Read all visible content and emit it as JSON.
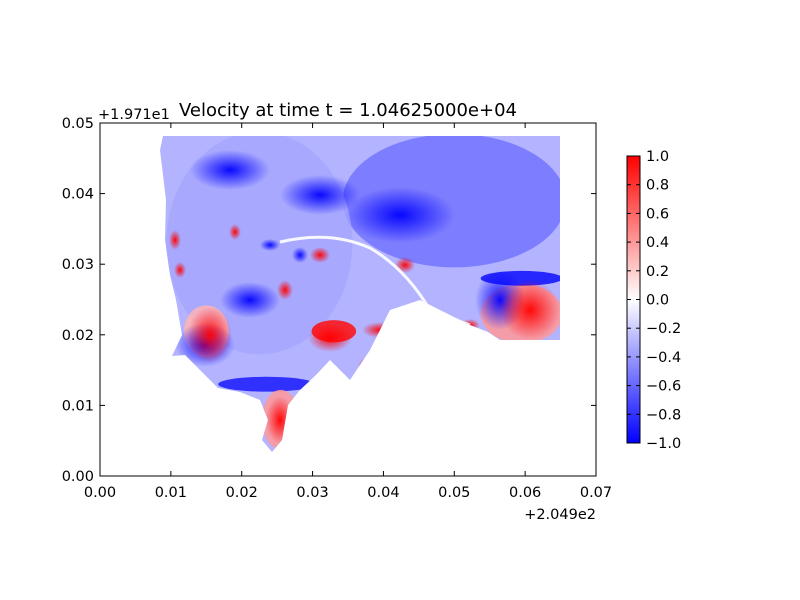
{
  "chart_data": {
    "type": "heatmap",
    "title": "Velocity at time t = 1.04625000e+04",
    "xlabel": "",
    "ylabel": "",
    "xlim": [
      0.0,
      0.07
    ],
    "ylim": [
      0.0,
      0.05
    ],
    "x_ticks": [
      "0.00",
      "0.01",
      "0.02",
      "0.03",
      "0.04",
      "0.05",
      "0.06",
      "0.07"
    ],
    "y_ticks": [
      "0.00",
      "0.01",
      "0.02",
      "0.03",
      "0.04",
      "0.05"
    ],
    "x_offset": "+2.049e2",
    "y_offset": "+1.971e1",
    "colorbar": {
      "colormap": "bwr",
      "range": [
        -1.0,
        1.0
      ],
      "ticks": [
        "1.0",
        "0.8",
        "0.6",
        "0.4",
        "0.2",
        "0.0",
        "−0.2",
        "−0.4",
        "−0.6",
        "−0.8",
        "−1.0"
      ],
      "colors": {
        "low": "#0000ff",
        "mid": "#ffffff",
        "high": "#ff0000"
      }
    },
    "field_description_regions": [
      {
        "label": "north-east basin",
        "x_range": [
          0.035,
          0.065
        ],
        "y_range": [
          0.03,
          0.048
        ],
        "value": -0.55
      },
      {
        "label": "western interior",
        "x_range": [
          0.01,
          0.035
        ],
        "y_range": [
          0.018,
          0.048
        ],
        "value": -0.35
      },
      {
        "label": "south-west patch",
        "x_range": [
          0.012,
          0.018
        ],
        "y_range": [
          0.017,
          0.024
        ],
        "value": 0.3
      },
      {
        "label": "south-east coastal",
        "x_range": [
          0.054,
          0.065
        ],
        "y_range": [
          0.019,
          0.027
        ],
        "value": 0.4
      },
      {
        "label": "southern shelf",
        "x_range": [
          0.017,
          0.03
        ],
        "y_range": [
          0.012,
          0.014
        ],
        "value": -0.9
      },
      {
        "label": "southern channel",
        "x_range": [
          0.023,
          0.028
        ],
        "y_range": [
          0.004,
          0.012
        ],
        "value": 0.4
      },
      {
        "label": "central jet",
        "x_range": [
          0.03,
          0.036
        ],
        "y_range": [
          0.019,
          0.022
        ],
        "value": 0.95
      },
      {
        "label": "eastern band",
        "x_range": [
          0.054,
          0.065
        ],
        "y_range": [
          0.027,
          0.029
        ],
        "value": -0.95
      }
    ]
  }
}
